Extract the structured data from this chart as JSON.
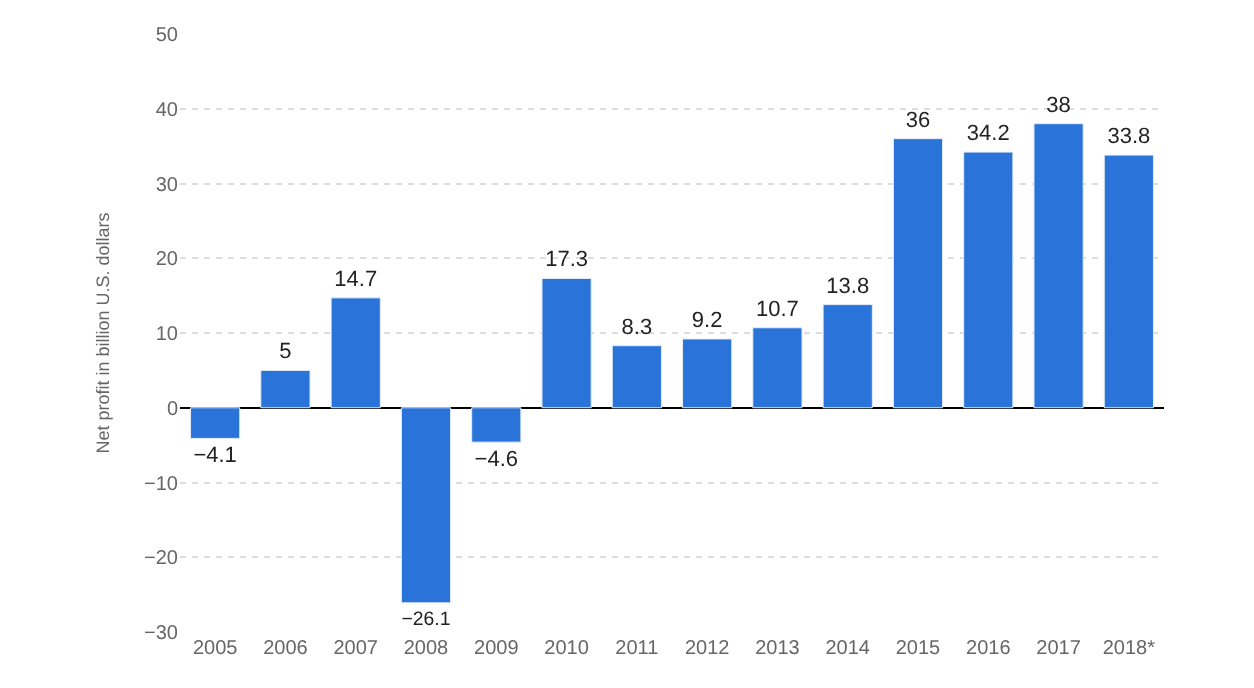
{
  "chart_data": {
    "type": "bar",
    "ylabel": "Net profit in billion U.S. dollars",
    "categories": [
      "2005",
      "2006",
      "2007",
      "2008",
      "2009",
      "2010",
      "2011",
      "2012",
      "2013",
      "2014",
      "2015",
      "2016",
      "2017",
      "2018*"
    ],
    "values": [
      -4.1,
      5,
      14.7,
      -26.1,
      -4.6,
      17.3,
      8.3,
      9.2,
      10.7,
      13.8,
      36,
      34.2,
      38,
      33.8
    ],
    "value_labels": [
      "−4.1",
      "5",
      "14.7",
      "−26.1",
      "−4.6",
      "17.3",
      "8.3",
      "9.2",
      "10.7",
      "13.8",
      "36",
      "34.2",
      "38",
      "33.8"
    ],
    "color": "#2a74d9",
    "ylim": [
      -30,
      50
    ],
    "yticks": [
      {
        "value": -30,
        "label": "−30"
      },
      {
        "value": -20,
        "label": "−20"
      },
      {
        "value": -10,
        "label": "−10"
      },
      0,
      10,
      20,
      30,
      40,
      50
    ],
    "grid": "y"
  }
}
